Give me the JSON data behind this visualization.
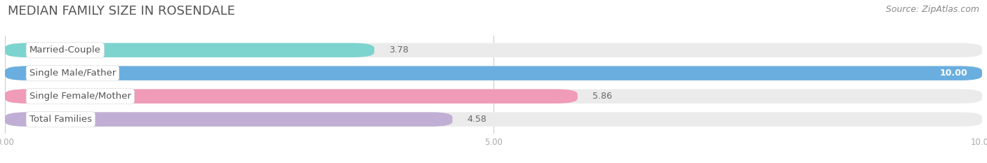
{
  "title": "MEDIAN FAMILY SIZE IN ROSENDALE",
  "source": "Source: ZipAtlas.com",
  "categories": [
    "Married-Couple",
    "Single Male/Father",
    "Single Female/Mother",
    "Total Families"
  ],
  "values": [
    3.78,
    10.0,
    5.86,
    4.58
  ],
  "bar_colors": [
    "#7dd4cf",
    "#6aaee0",
    "#f09bb8",
    "#c0aed4"
  ],
  "xlim": [
    0,
    10
  ],
  "xtick_labels": [
    "0.00",
    "5.00",
    "10.00"
  ],
  "background_color": "#ffffff",
  "bar_background_color": "#ebebeb",
  "title_fontsize": 13,
  "source_fontsize": 9,
  "label_fontsize": 9.5,
  "value_fontsize": 9,
  "bar_height": 0.62,
  "label_color": "#555555",
  "value_color_inside": "#ffffff",
  "value_color_outside": "#666666",
  "title_color": "#555555",
  "source_color": "#888888",
  "grid_color": "#cccccc",
  "tick_color": "#aaaaaa"
}
